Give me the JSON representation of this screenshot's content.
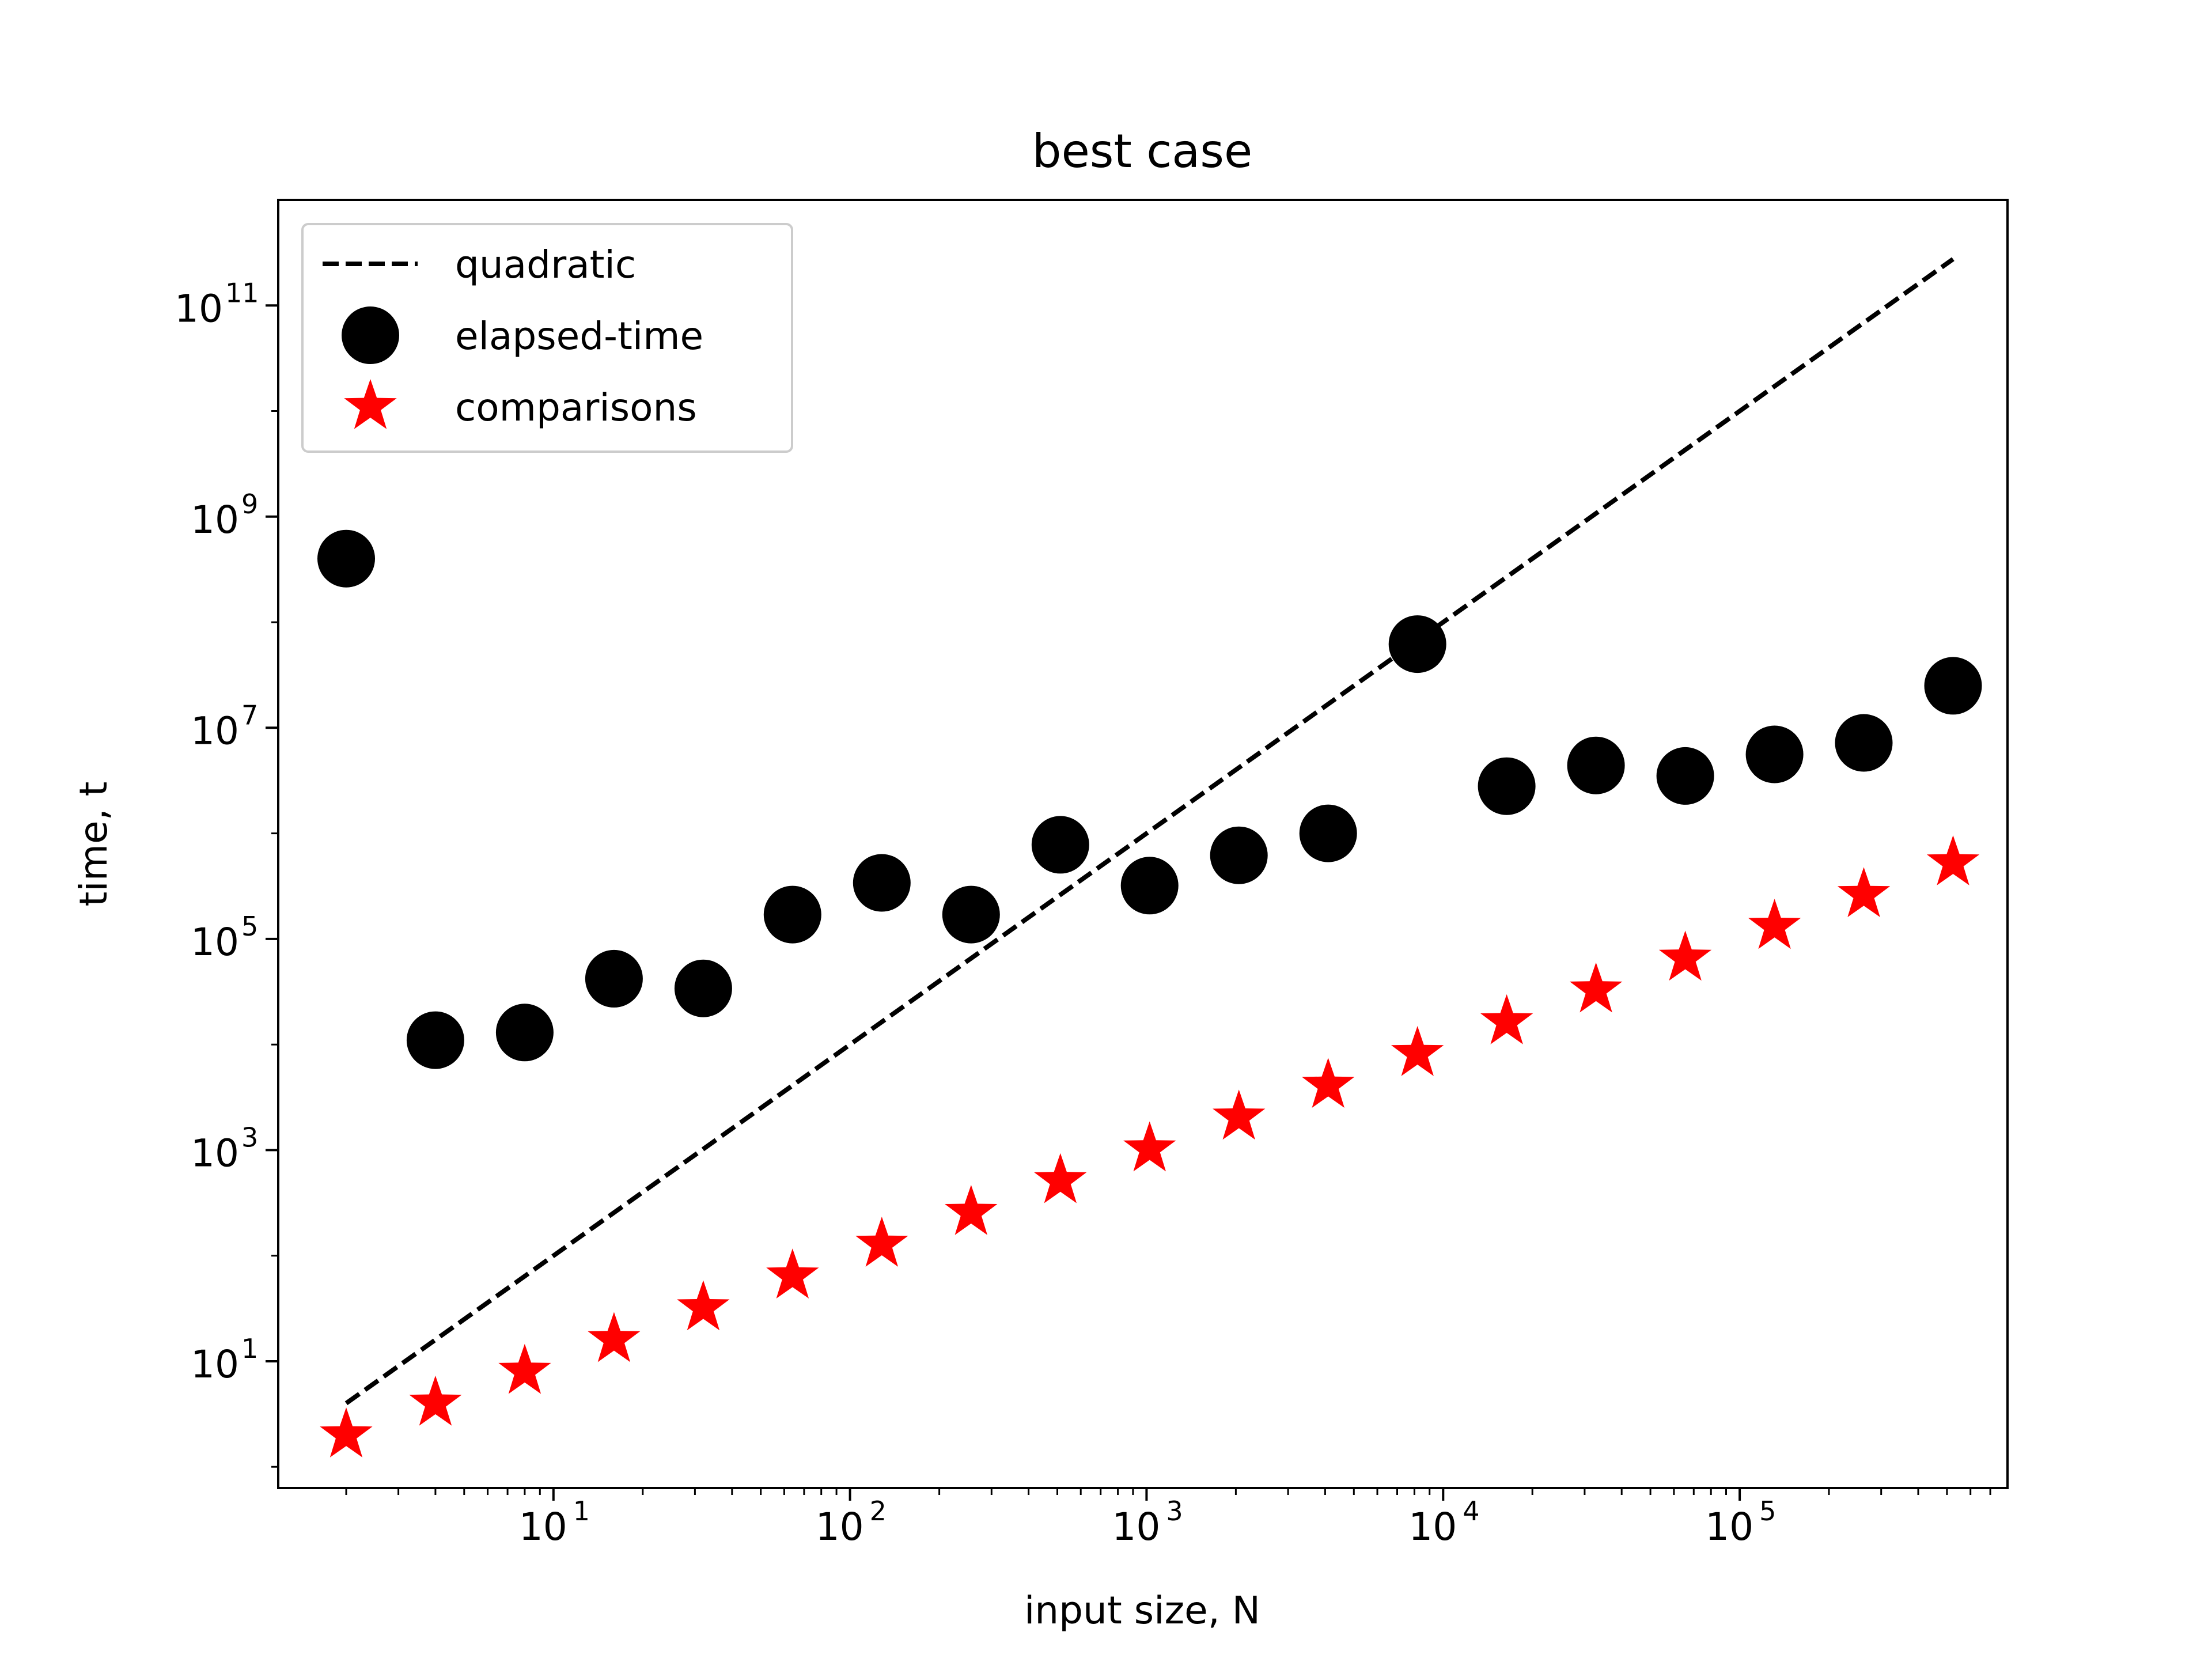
{
  "chart_data": {
    "type": "scatter",
    "title": "best case",
    "xlabel": "input size, N",
    "ylabel": "time, t",
    "xscale": "log",
    "yscale": "log",
    "xlim": [
      1.18,
      800000
    ],
    "ylim": [
      0.63,
      1000000000000.0
    ],
    "xticks": [
      {
        "exp": "1",
        "value": 10
      },
      {
        "exp": "2",
        "value": 100
      },
      {
        "exp": "3",
        "value": 1000
      },
      {
        "exp": "4",
        "value": 10000
      },
      {
        "exp": "5",
        "value": 100000
      }
    ],
    "yticks": [
      {
        "exp": "1",
        "value": 10
      },
      {
        "exp": "3",
        "value": 1000
      },
      {
        "exp": "5",
        "value": 100000
      },
      {
        "exp": "7",
        "value": 10000000
      },
      {
        "exp": "9",
        "value": 1000000000
      },
      {
        "exp": "11",
        "value": 100000000000
      }
    ],
    "tick_base": "10",
    "grid": false,
    "legend_position": "top-left",
    "series": [
      {
        "name": "quadratic",
        "kind": "line",
        "style": "dashed",
        "color": "#000000",
        "x": [
          2,
          524288
        ],
        "y": [
          4,
          274877906944
        ]
      },
      {
        "name": "elapsed-time",
        "kind": "marker",
        "marker": "circle",
        "color": "#000000",
        "x": [
          2,
          4,
          8,
          16,
          32,
          64,
          128,
          256,
          512,
          1024,
          2048,
          4096,
          8192,
          16384,
          32768,
          65536,
          131072,
          262144,
          524288
        ],
        "y": [
          400000000,
          11000,
          13000,
          42000,
          34000,
          170000,
          340000,
          170000,
          780000,
          320000,
          620000,
          1000000,
          62000000,
          2800000,
          4400000,
          3500000,
          5600000,
          7200000,
          25000000
        ]
      },
      {
        "name": "comparisons",
        "kind": "marker",
        "marker": "star",
        "color": "#ff0000",
        "x": [
          2,
          4,
          8,
          16,
          32,
          64,
          128,
          256,
          512,
          1024,
          2048,
          4096,
          8192,
          16384,
          32768,
          65536,
          131072,
          262144,
          524288
        ],
        "y": [
          2,
          4,
          8,
          16,
          32,
          64,
          128,
          256,
          512,
          1024,
          2048,
          4096,
          8192,
          16384,
          32768,
          65536,
          131072,
          262144,
          524288
        ]
      }
    ]
  }
}
